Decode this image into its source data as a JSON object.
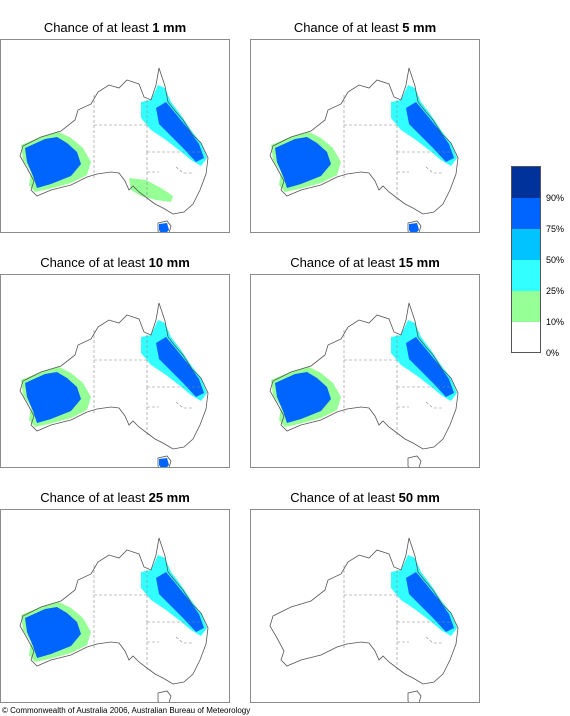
{
  "title_prefix": "Chance of at least",
  "panels": [
    {
      "threshold": "1 mm",
      "regions": [
        "south-west",
        "north-east",
        "south-east",
        "tasmania"
      ]
    },
    {
      "threshold": "5 mm",
      "regions": [
        "south-west",
        "north-east",
        "tasmania"
      ]
    },
    {
      "threshold": "10 mm",
      "regions": [
        "south-west",
        "north-east",
        "tasmania"
      ]
    },
    {
      "threshold": "15 mm",
      "regions": [
        "south-west",
        "north-east"
      ]
    },
    {
      "threshold": "25 mm",
      "regions": [
        "south-west",
        "north-east"
      ]
    },
    {
      "threshold": "50 mm",
      "regions": [
        "north-east"
      ]
    }
  ],
  "legend": {
    "bins": [
      {
        "label": "90%",
        "color": "#00329b"
      },
      {
        "label": "75%",
        "color": "#0064ff"
      },
      {
        "label": "50%",
        "color": "#00c3ff"
      },
      {
        "label": "25%",
        "color": "#32ffff"
      },
      {
        "label": "10%",
        "color": "#96ff96"
      },
      {
        "label": "0%",
        "color": "#ffffff"
      }
    ]
  },
  "copyright": "© Commonwealth of Australia 2006, Australian Bureau of Meteorology"
}
